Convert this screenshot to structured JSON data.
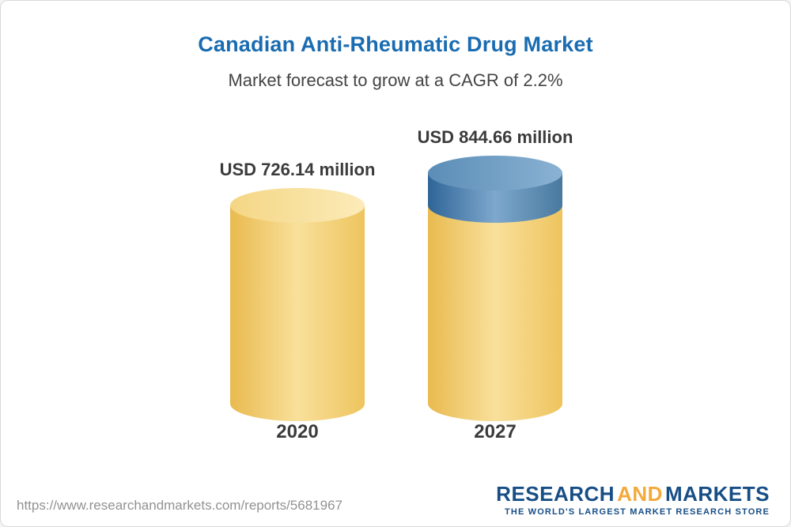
{
  "header": {
    "title": "Canadian Anti-Rheumatic Drug Market",
    "subtitle": "Market forecast to grow at a CAGR of 2.2%"
  },
  "footer": {
    "url": "https://www.researchandmarkets.com/reports/5681967",
    "logo": {
      "research": "RESEARCH",
      "and": "AND",
      "markets": "MARKETS",
      "tagline": "THE WORLD'S LARGEST MARKET RESEARCH STORE"
    }
  },
  "chart_data": {
    "type": "bar",
    "style": "3d-cylinder",
    "title": "Canadian Anti-Rheumatic Drug Market",
    "subtitle": "Market forecast to grow at a CAGR of 2.2%",
    "cagr_percent": 2.2,
    "unit": "USD million",
    "categories": [
      "2020",
      "2027"
    ],
    "values": [
      726.14,
      844.66
    ],
    "value_labels": [
      "USD 726.14 million",
      "USD 844.66 million"
    ],
    "ylim": [
      0,
      844.66
    ],
    "grid": false,
    "legend": "none",
    "annotations": "2027 cylinder shows growth segment above the 2020 level as a blue cap",
    "colors": {
      "bar_base_gold": "#f3d07a",
      "bar_growth_blue": "#5b8db6",
      "title_blue": "#1a6cb1"
    }
  }
}
